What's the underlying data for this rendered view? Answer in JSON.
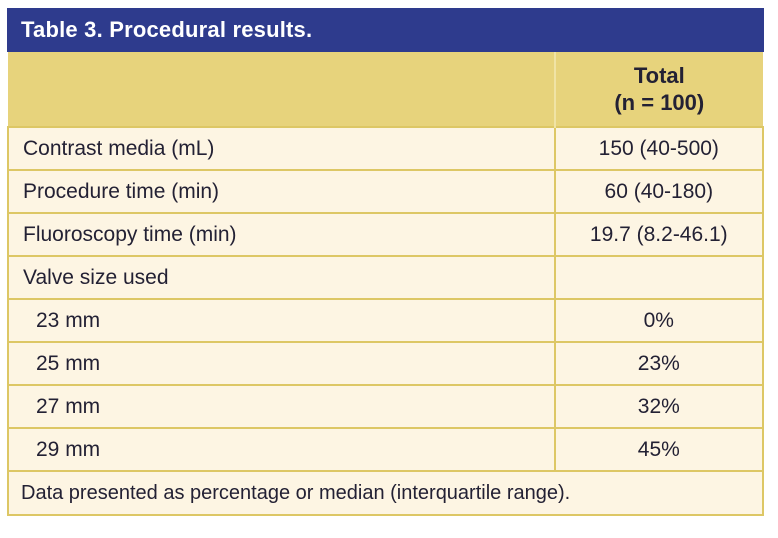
{
  "table": {
    "title": "Table 3. Procedural results.",
    "header": {
      "total_line1": "Total",
      "total_line2": "(n = 100)"
    },
    "rows": [
      {
        "label": "Contrast media (mL)",
        "value": "150 (40-500)",
        "indent": false
      },
      {
        "label": "Procedure time (min)",
        "value": "60 (40-180)",
        "indent": false
      },
      {
        "label": "Fluoroscopy time (min)",
        "value": "19.7 (8.2-46.1)",
        "indent": false
      },
      {
        "label": "Valve size used",
        "value": "",
        "indent": false
      },
      {
        "label": "23 mm",
        "value": "0%",
        "indent": true
      },
      {
        "label": "25 mm",
        "value": "23%",
        "indent": true
      },
      {
        "label": "27 mm",
        "value": "32%",
        "indent": true
      },
      {
        "label": "29 mm",
        "value": "45%",
        "indent": true
      }
    ],
    "footnote": "Data presented as percentage or median (interquartile range)."
  },
  "colors": {
    "title_bar_blue": "#2e3b8d",
    "header_yellow": "#e7d37c",
    "row_cream": "#fdf5e3",
    "border_tan": "#ddc765",
    "text_dark": "#232134",
    "title_text": "#ffffff"
  }
}
